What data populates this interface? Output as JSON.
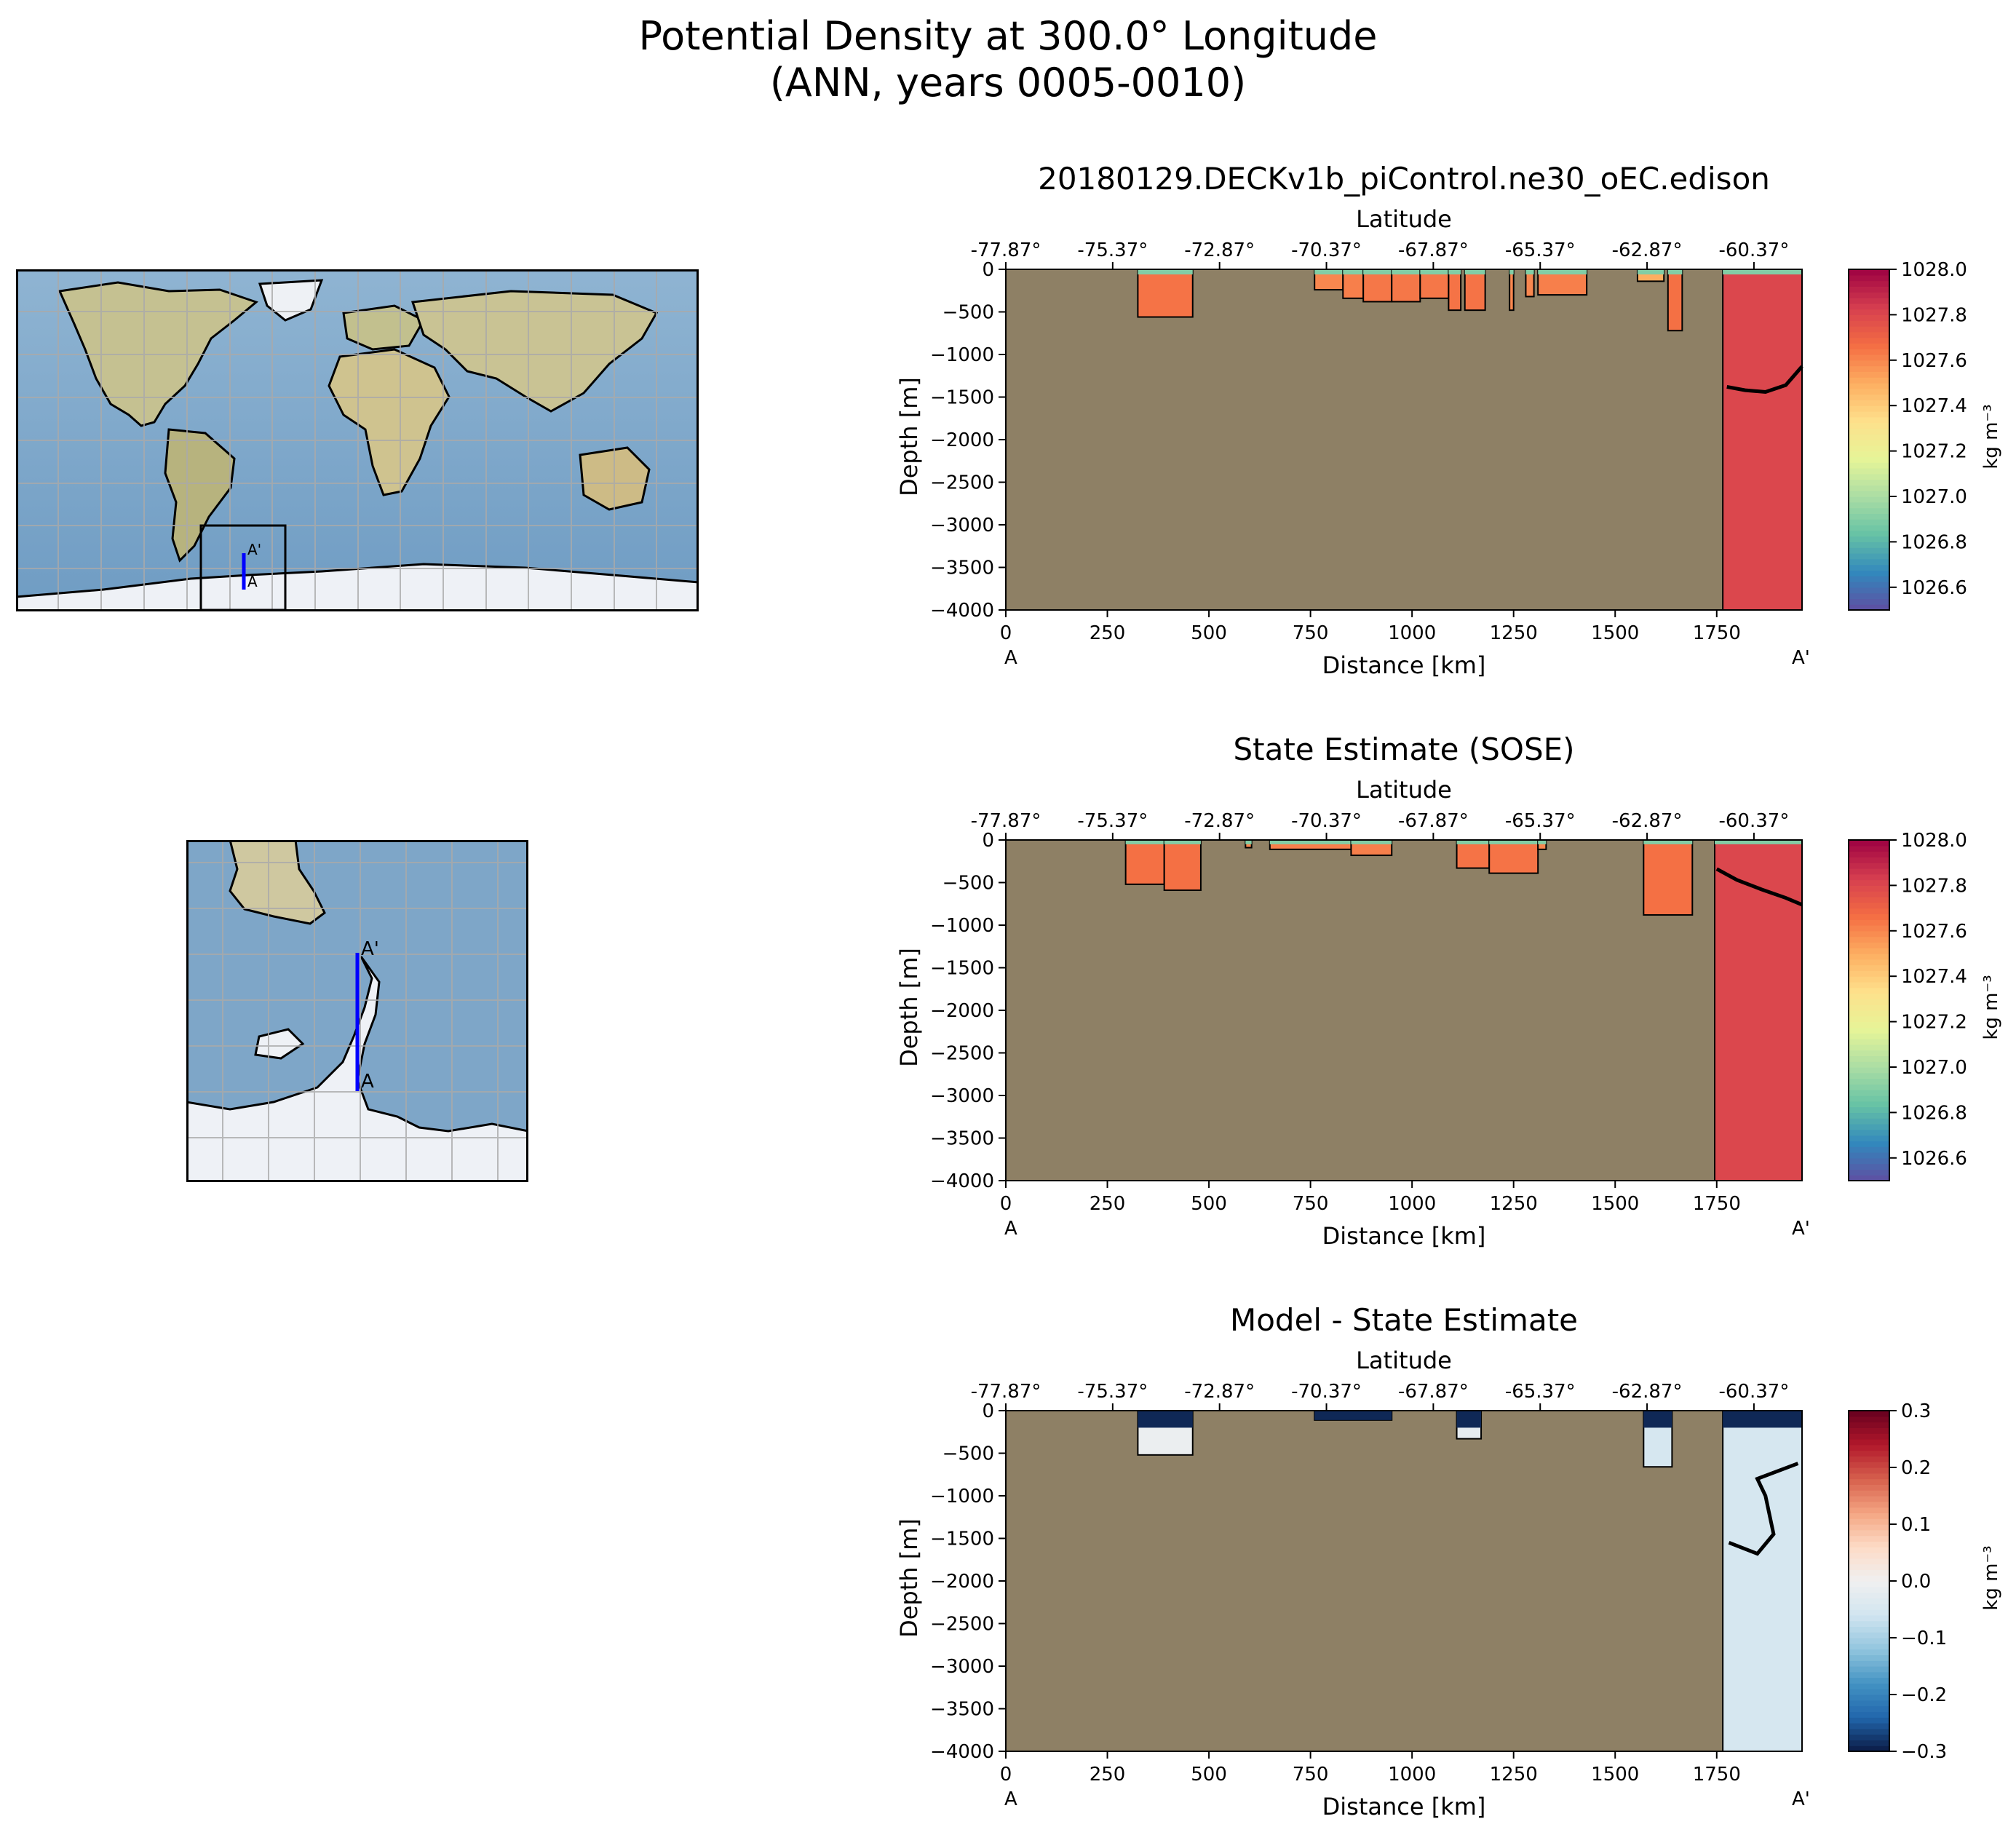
{
  "figure": {
    "title_line1": "Potential Density at 300.0° Longitude",
    "title_line2": "(ANN, years 0005-0010)"
  },
  "maps": {
    "global_label_a": "A",
    "global_label_a_prime": "A'",
    "inset_label_a": "A",
    "inset_label_a_prime": "A'",
    "land_color": "#c9c39a",
    "ocean_color": "#7ea6c8",
    "ice_color": "#e9edf3",
    "transect_color": "#0000ff"
  },
  "chart_data": [
    {
      "type": "heatmap",
      "title": "20180129.DECKv1b_piControl.ne30_oEC.edison",
      "top_axis_label": "Latitude",
      "top_ticks": [
        "-77.87°",
        "-75.37°",
        "-72.87°",
        "-70.37°",
        "-67.87°",
        "-65.37°",
        "-62.87°",
        "-60.37°"
      ],
      "xlabel": "Distance [km]",
      "ylabel": "Depth [m]",
      "xticks": [
        0,
        250,
        500,
        750,
        1000,
        1250,
        1500,
        1750
      ],
      "yticks": [
        0,
        -500,
        -1000,
        -1500,
        -2000,
        -2500,
        -3000,
        -3500,
        -4000
      ],
      "xlim": [
        0,
        1960
      ],
      "ylim": [
        -4000,
        0
      ],
      "start_label": "A",
      "end_label": "A'",
      "colorbar": {
        "min": 1026.5,
        "max": 1028.0,
        "ticks": [
          1026.6,
          1026.8,
          1027.0,
          1027.2,
          1027.4,
          1027.6,
          1027.8,
          1028.0
        ],
        "tick_labels": [
          "1026.6",
          "1026.8",
          "1027.0",
          "1027.2",
          "1027.4",
          "1027.6",
          "1027.8",
          "1028.0"
        ],
        "label": "kg m⁻³",
        "colormap": "Spectral_r"
      },
      "bathymetry_color": "#8e8065",
      "water_segments": [
        {
          "x0": 325,
          "x1": 460,
          "bottom": -560,
          "value": 1027.65
        },
        {
          "x0": 760,
          "x1": 830,
          "bottom": -240,
          "value": 1027.6
        },
        {
          "x0": 830,
          "x1": 880,
          "bottom": -340,
          "value": 1027.62
        },
        {
          "x0": 880,
          "x1": 950,
          "bottom": -380,
          "value": 1027.64
        },
        {
          "x0": 950,
          "x1": 1020,
          "bottom": -380,
          "value": 1027.64
        },
        {
          "x0": 1020,
          "x1": 1090,
          "bottom": -340,
          "value": 1027.64
        },
        {
          "x0": 1090,
          "x1": 1120,
          "bottom": -480,
          "value": 1027.65
        },
        {
          "x0": 1130,
          "x1": 1180,
          "bottom": -480,
          "value": 1027.65
        },
        {
          "x0": 1240,
          "x1": 1250,
          "bottom": -480,
          "value": 1027.6
        },
        {
          "x0": 1280,
          "x1": 1300,
          "bottom": -320,
          "value": 1027.6
        },
        {
          "x0": 1310,
          "x1": 1430,
          "bottom": -300,
          "value": 1027.62
        },
        {
          "x0": 1555,
          "x1": 1620,
          "bottom": -140,
          "value": 1027.5
        },
        {
          "x0": 1630,
          "x1": 1665,
          "bottom": -720,
          "value": 1027.66
        },
        {
          "x0": 1765,
          "x1": 1960,
          "bottom": -4000,
          "value": 1027.8
        }
      ],
      "surface_layer": {
        "value": 1026.9,
        "depth": -60
      },
      "contour_x": [
        1775,
        1820,
        1870,
        1920,
        1960
      ],
      "contour_y": [
        -1380,
        -1420,
        -1440,
        -1360,
        -1140
      ]
    },
    {
      "type": "heatmap",
      "title": "State Estimate (SOSE)",
      "top_axis_label": "Latitude",
      "top_ticks": [
        "-77.87°",
        "-75.37°",
        "-72.87°",
        "-70.37°",
        "-67.87°",
        "-65.37°",
        "-62.87°",
        "-60.37°"
      ],
      "xlabel": "Distance [km]",
      "ylabel": "Depth [m]",
      "xticks": [
        0,
        250,
        500,
        750,
        1000,
        1250,
        1500,
        1750
      ],
      "yticks": [
        0,
        -500,
        -1000,
        -1500,
        -2000,
        -2500,
        -3000,
        -3500,
        -4000
      ],
      "xlim": [
        0,
        1960
      ],
      "ylim": [
        -4000,
        0
      ],
      "start_label": "A",
      "end_label": "A'",
      "colorbar": {
        "min": 1026.5,
        "max": 1028.0,
        "ticks": [
          1026.6,
          1026.8,
          1027.0,
          1027.2,
          1027.4,
          1027.6,
          1027.8,
          1028.0
        ],
        "tick_labels": [
          "1026.6",
          "1026.8",
          "1027.0",
          "1027.2",
          "1027.4",
          "1027.6",
          "1027.8",
          "1028.0"
        ],
        "label": "kg m⁻³",
        "colormap": "Spectral_r"
      },
      "bathymetry_color": "#8e8065",
      "water_segments": [
        {
          "x0": 295,
          "x1": 390,
          "bottom": -520,
          "value": 1027.66
        },
        {
          "x0": 390,
          "x1": 480,
          "bottom": -590,
          "value": 1027.66
        },
        {
          "x0": 590,
          "x1": 605,
          "bottom": -90,
          "value": 1027.6
        },
        {
          "x0": 650,
          "x1": 850,
          "bottom": -110,
          "value": 1027.62
        },
        {
          "x0": 850,
          "x1": 950,
          "bottom": -180,
          "value": 1027.62
        },
        {
          "x0": 1110,
          "x1": 1190,
          "bottom": -330,
          "value": 1027.65
        },
        {
          "x0": 1190,
          "x1": 1310,
          "bottom": -390,
          "value": 1027.65
        },
        {
          "x0": 1310,
          "x1": 1330,
          "bottom": -110,
          "value": 1027.6
        },
        {
          "x0": 1570,
          "x1": 1690,
          "bottom": -880,
          "value": 1027.66
        },
        {
          "x0": 1745,
          "x1": 1960,
          "bottom": -4000,
          "value": 1027.8
        }
      ],
      "surface_layer": {
        "value": 1026.9,
        "depth": -50
      },
      "contour_x": [
        1750,
        1800,
        1860,
        1920,
        1960
      ],
      "contour_y": [
        -340,
        -470,
        -580,
        -680,
        -760
      ]
    },
    {
      "type": "heatmap",
      "title": "Model - State Estimate",
      "top_axis_label": "Latitude",
      "top_ticks": [
        "-77.87°",
        "-75.37°",
        "-72.87°",
        "-70.37°",
        "-67.87°",
        "-65.37°",
        "-62.87°",
        "-60.37°"
      ],
      "xlabel": "Distance [km]",
      "ylabel": "Depth [m]",
      "xticks": [
        0,
        250,
        500,
        750,
        1000,
        1250,
        1500,
        1750
      ],
      "yticks": [
        0,
        -500,
        -1000,
        -1500,
        -2000,
        -2500,
        -3000,
        -3500,
        -4000
      ],
      "xlim": [
        0,
        1960
      ],
      "ylim": [
        -4000,
        0
      ],
      "start_label": "A",
      "end_label": "A'",
      "colorbar": {
        "min": -0.3,
        "max": 0.3,
        "ticks": [
          -0.3,
          -0.2,
          -0.1,
          0.0,
          0.1,
          0.2,
          0.3
        ],
        "tick_labels": [
          "−0.3",
          "−0.2",
          "−0.1",
          "0.0",
          "0.1",
          "0.2",
          "0.3"
        ],
        "label": "kg m⁻³",
        "colormap": "RdBu_r"
      },
      "bathymetry_color": "#8e8065",
      "water_segments": [
        {
          "x0": 325,
          "x1": 460,
          "bottom": -520,
          "value": -0.01
        },
        {
          "x0": 760,
          "x1": 950,
          "bottom": -110,
          "value": -0.28
        },
        {
          "x0": 1110,
          "x1": 1170,
          "bottom": -330,
          "value": -0.02
        },
        {
          "x0": 1570,
          "x1": 1640,
          "bottom": -660,
          "value": -0.05
        },
        {
          "x0": 1765,
          "x1": 1960,
          "bottom": -4000,
          "value": -0.05
        }
      ],
      "surface_layer": {
        "value": -0.29,
        "depth": -200
      },
      "contour_x": [
        1780,
        1850,
        1890,
        1870,
        1850,
        1950
      ],
      "contour_y": [
        -1550,
        -1680,
        -1450,
        -1000,
        -800,
        -620
      ]
    }
  ]
}
